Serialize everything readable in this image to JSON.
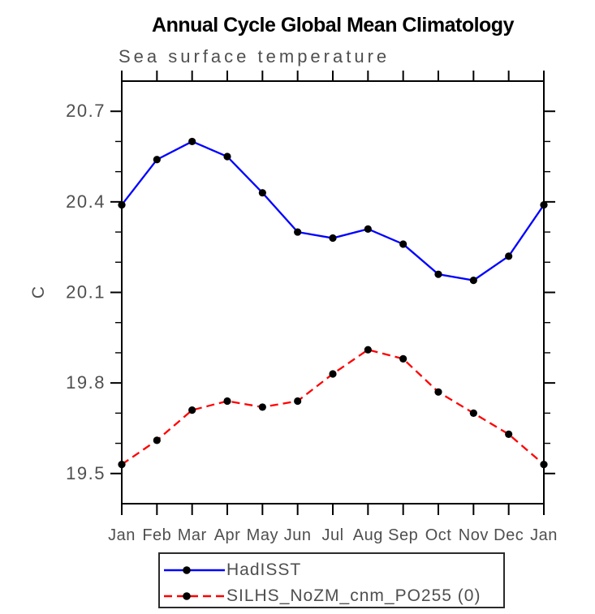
{
  "chart_data": {
    "type": "line",
    "title": "Annual Cycle Global Mean Climatology",
    "subtitle": "Sea surface temperature",
    "xlabel": "",
    "ylabel": "C",
    "categories": [
      "Jan",
      "Feb",
      "Mar",
      "Apr",
      "May",
      "Jun",
      "Jul",
      "Aug",
      "Sep",
      "Oct",
      "Nov",
      "Dec",
      "Jan"
    ],
    "series": [
      {
        "name": "HadISST",
        "color": "#0000ff",
        "line_style": "solid",
        "marker": "filled-circle",
        "marker_color": "#000000",
        "values": [
          20.39,
          20.54,
          20.6,
          20.55,
          20.43,
          20.3,
          20.28,
          20.31,
          20.26,
          20.16,
          20.14,
          20.22,
          20.39
        ]
      },
      {
        "name": "SILHS_NoZM_cnm_PO255 (0)",
        "color": "#ff0000",
        "line_style": "dashed",
        "marker": "filled-circle",
        "marker_color": "#000000",
        "values": [
          19.53,
          19.61,
          19.71,
          19.74,
          19.72,
          19.74,
          19.83,
          19.91,
          19.88,
          19.77,
          19.7,
          19.63,
          19.53
        ]
      }
    ],
    "ylim": [
      19.4,
      20.8
    ],
    "yticks_major": [
      19.5,
      19.8,
      20.1,
      20.4,
      20.7
    ],
    "ytick_labels": [
      "19.5",
      "19.8",
      "20.1",
      "20.4",
      "20.7"
    ],
    "minor_tick_interval": 0.1,
    "grid": "off",
    "legend_position": "bottom"
  },
  "colors": {
    "axis": "#000000",
    "text_gray": "#4f4f4f",
    "background": "#ffffff"
  }
}
